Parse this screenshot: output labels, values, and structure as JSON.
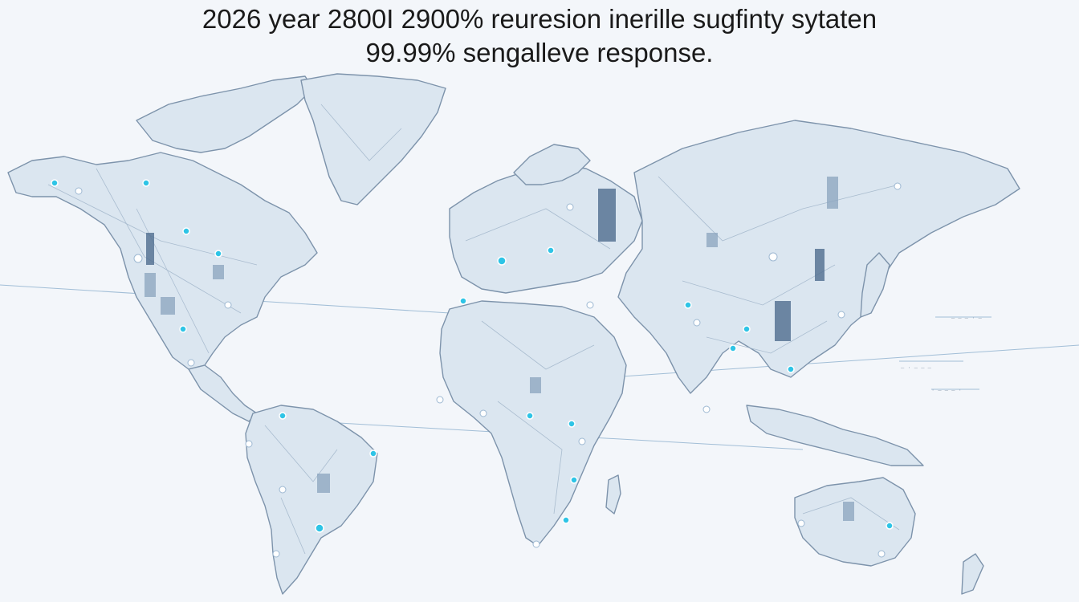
{
  "headline": {
    "line1": "2026 year 2800I 2900% reuresion inerille sugfinty sytaten",
    "line2": "99.99% sengalleve response."
  },
  "colors": {
    "background": "#f3f6fa",
    "land": "#dbe6f0",
    "coast": "#7d93ab",
    "node_accent": "#2ec4e6",
    "node_light": "#ffffff"
  },
  "legend_marks": [
    "— — — · —",
    "— · — — —",
    "· — — — ·"
  ]
}
